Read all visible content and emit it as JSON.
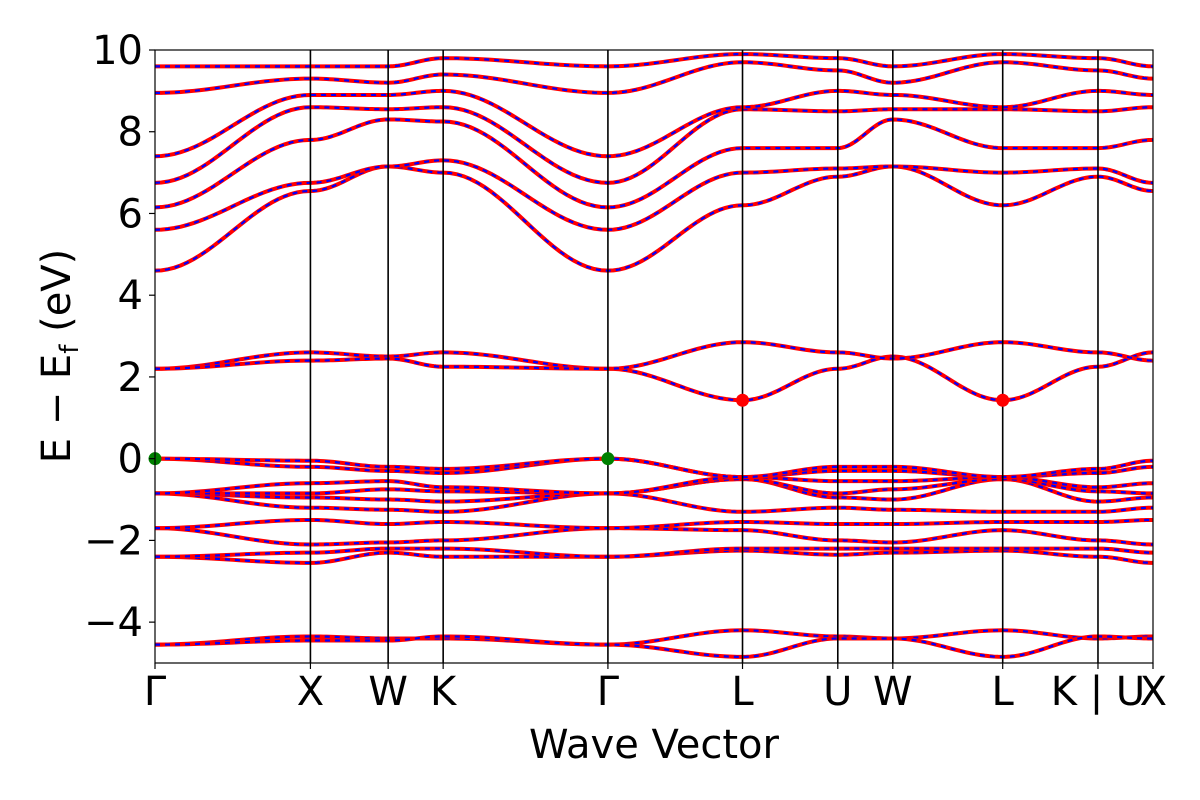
{
  "chart_data": {
    "type": "line",
    "title": "",
    "xlabel": "Wave Vector",
    "ylabel_main": "E − E",
    "ylabel_sub": "f",
    "ylabel_unit": " (eV)",
    "ylim": [
      -5,
      10
    ],
    "yticks": [
      -4,
      -2,
      0,
      2,
      4,
      6,
      8,
      10
    ],
    "ytick_labels": [
      "−4",
      "−2",
      "0",
      "2",
      "4",
      "6",
      "8",
      "10"
    ],
    "kpath": [
      {
        "label": "Γ",
        "x": 0.0
      },
      {
        "label": "X",
        "x": 1.0
      },
      {
        "label": "W",
        "x": 1.5
      },
      {
        "label": "K",
        "x": 1.854
      },
      {
        "label": "Γ",
        "x": 2.914
      },
      {
        "label": "L",
        "x": 3.78
      },
      {
        "label": "U",
        "x": 4.393
      },
      {
        "label": "W",
        "x": 4.747
      },
      {
        "label": "L",
        "x": 5.454
      },
      {
        "label": "K | U",
        "x": 6.067
      },
      {
        "label": "X",
        "x": 6.421
      }
    ],
    "band_colors": {
      "solid": "#ff0000",
      "dashed": "#0000ff"
    },
    "vbm_color": "#008000",
    "cbm_color": "#ff0000",
    "vbm_points": [
      {
        "x": 0.0,
        "y": 0.0
      },
      {
        "x": 2.914,
        "y": 0.0
      }
    ],
    "cbm_points": [
      {
        "x": 3.78,
        "y": 1.43
      },
      {
        "x": 5.454,
        "y": 1.43
      }
    ],
    "series": [
      {
        "values": [
          -4.55,
          -4.35,
          -4.4,
          -4.4,
          -4.55,
          -4.2,
          -4.35,
          -4.4,
          -4.2,
          -4.4,
          -4.35
        ]
      },
      {
        "values": [
          -4.55,
          -4.45,
          -4.45,
          -4.35,
          -4.55,
          -4.85,
          -4.4,
          -4.4,
          -4.85,
          -4.35,
          -4.4
        ]
      },
      {
        "values": [
          -2.4,
          -2.55,
          -2.3,
          -2.4,
          -2.4,
          -2.25,
          -2.35,
          -2.3,
          -2.25,
          -2.4,
          -2.55
        ]
      },
      {
        "values": [
          -2.4,
          -2.3,
          -2.2,
          -2.2,
          -2.4,
          -2.2,
          -2.2,
          -2.2,
          -2.2,
          -2.2,
          -2.3
        ]
      },
      {
        "values": [
          -1.7,
          -2.1,
          -2.05,
          -2.0,
          -1.7,
          -1.75,
          -2.0,
          -2.05,
          -1.75,
          -2.0,
          -2.1
        ]
      },
      {
        "values": [
          -1.7,
          -1.5,
          -1.6,
          -1.55,
          -1.7,
          -1.55,
          -1.6,
          -1.6,
          -1.55,
          -1.55,
          -1.5
        ]
      },
      {
        "values": [
          -0.85,
          -1.2,
          -1.25,
          -1.3,
          -0.85,
          -1.3,
          -1.2,
          -1.25,
          -1.3,
          -1.3,
          -1.2
        ]
      },
      {
        "values": [
          -0.85,
          -0.95,
          -1.0,
          -1.05,
          -0.85,
          -0.5,
          -0.95,
          -1.0,
          -0.5,
          -1.05,
          -0.95
        ]
      },
      {
        "values": [
          -0.85,
          -0.85,
          -0.75,
          -0.8,
          -0.85,
          -0.5,
          -0.85,
          -0.75,
          -0.5,
          -0.8,
          -0.85
        ]
      },
      {
        "values": [
          -0.85,
          -0.6,
          -0.55,
          -0.7,
          -0.85,
          -0.45,
          -0.55,
          -0.55,
          -0.45,
          -0.7,
          -0.6
        ]
      },
      {
        "values": [
          0.0,
          -0.2,
          -0.3,
          -0.35,
          0.0,
          -0.45,
          -0.3,
          -0.3,
          -0.45,
          -0.35,
          -0.2
        ]
      },
      {
        "values": [
          0.0,
          -0.05,
          -0.2,
          -0.25,
          0.0,
          -0.45,
          -0.2,
          -0.2,
          -0.45,
          -0.25,
          -0.05
        ]
      },
      {
        "values": [
          2.2,
          2.6,
          2.5,
          2.6,
          2.2,
          1.43,
          2.2,
          2.5,
          1.43,
          2.25,
          2.6
        ]
      },
      {
        "values": [
          2.2,
          2.4,
          2.45,
          2.25,
          2.2,
          2.85,
          2.6,
          2.45,
          2.85,
          2.6,
          2.4
        ]
      },
      {
        "values": [
          4.6,
          6.55,
          7.15,
          7.0,
          4.6,
          6.2,
          6.9,
          7.15,
          6.2,
          6.9,
          6.55
        ]
      },
      {
        "values": [
          5.6,
          6.75,
          7.15,
          7.3,
          5.6,
          7.0,
          7.1,
          7.15,
          7.0,
          7.1,
          6.75
        ]
      },
      {
        "values": [
          6.15,
          7.8,
          8.3,
          8.25,
          6.15,
          7.6,
          7.6,
          8.3,
          7.6,
          7.6,
          7.8
        ]
      },
      {
        "values": [
          6.75,
          8.6,
          8.55,
          8.6,
          6.75,
          8.55,
          8.5,
          8.55,
          8.55,
          8.5,
          8.6
        ]
      },
      {
        "values": [
          7.4,
          8.9,
          8.9,
          9.0,
          7.4,
          8.6,
          9.0,
          8.9,
          8.6,
          9.0,
          8.9
        ]
      },
      {
        "values": [
          8.95,
          9.3,
          9.2,
          9.4,
          8.95,
          9.7,
          9.5,
          9.2,
          9.7,
          9.5,
          9.3
        ]
      },
      {
        "values": [
          9.6,
          9.6,
          9.6,
          9.8,
          9.6,
          9.9,
          9.8,
          9.6,
          9.9,
          9.8,
          9.6
        ]
      }
    ]
  }
}
